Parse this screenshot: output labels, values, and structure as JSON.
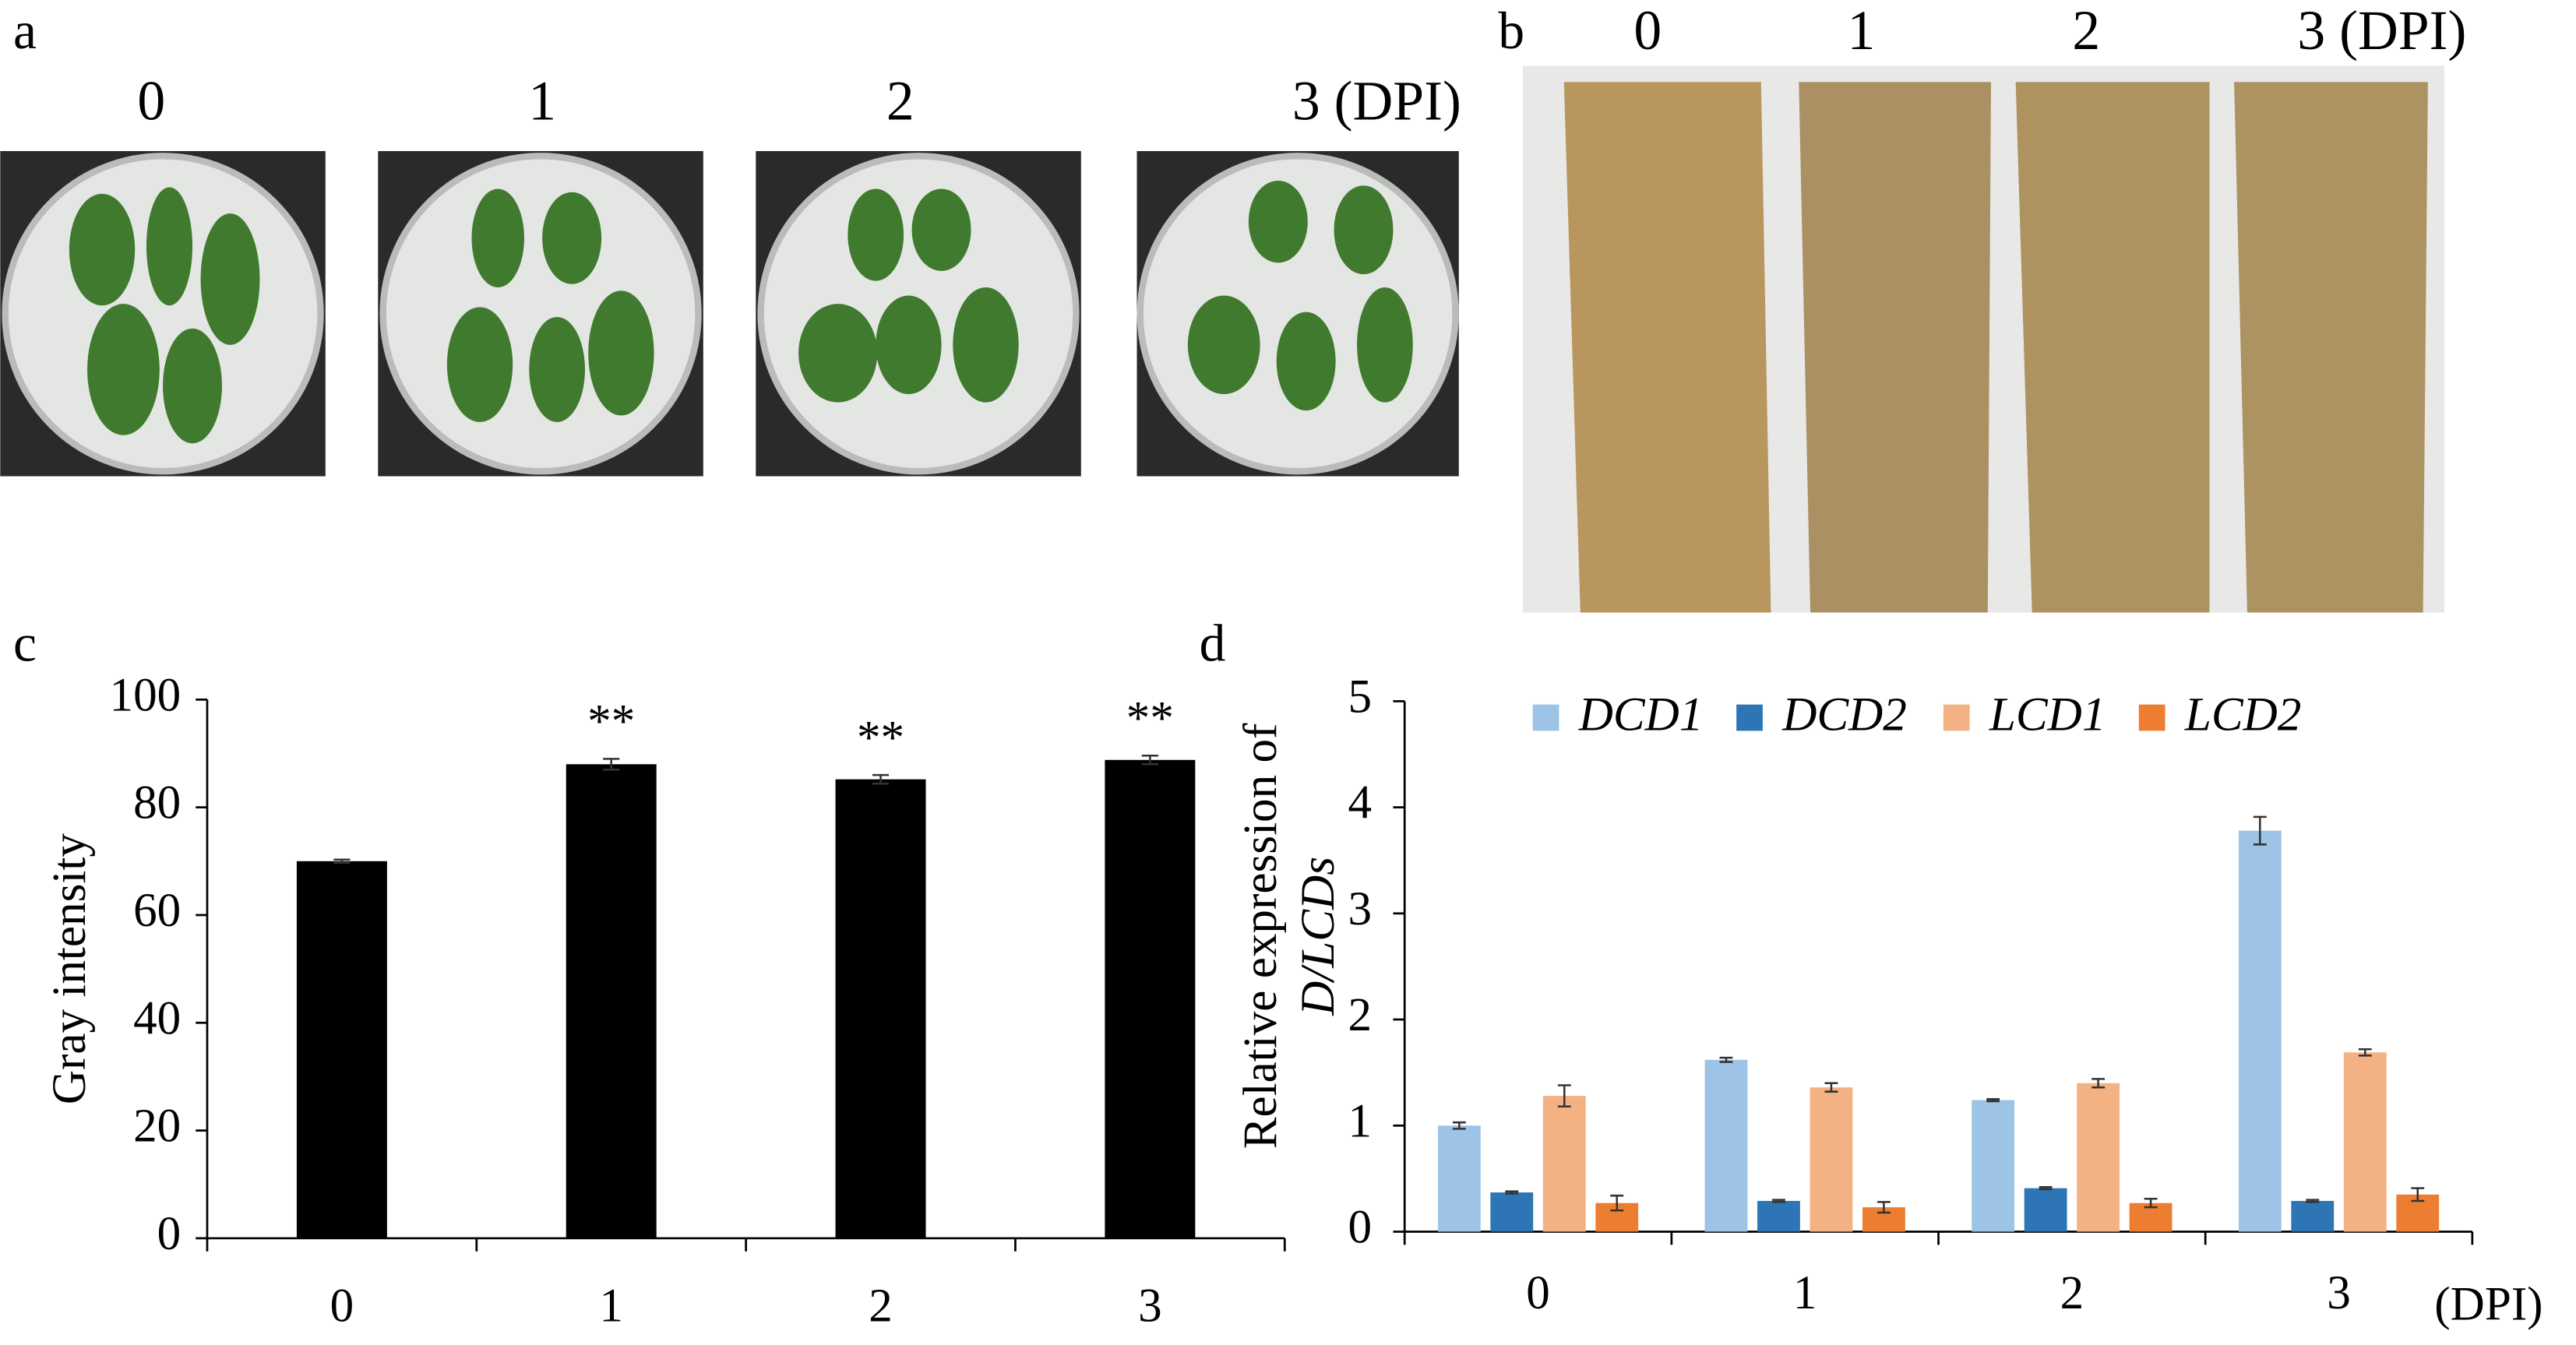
{
  "photo_panels": [
    {
      "label": "a",
      "columns": [
        "0",
        "1",
        "2",
        "3 (DPI)"
      ]
    },
    {
      "label": "b",
      "columns": [
        "0",
        "1",
        "2",
        "3 (DPI)"
      ]
    }
  ],
  "chart_data": [
    {
      "type": "bar",
      "panel_label": "c",
      "ylabel": "Gray intensity",
      "categories": [
        "0",
        "1",
        "2",
        "3"
      ],
      "values": [
        70,
        88,
        85.2,
        88.8
      ],
      "errors": [
        0.3,
        1,
        0.8,
        0.8
      ],
      "annotations": [
        null,
        "**",
        "**",
        "**"
      ],
      "color": "#000000",
      "ylim": [
        0,
        100
      ],
      "yticks": [
        0,
        20,
        40,
        60,
        80,
        100
      ]
    },
    {
      "type": "grouped_bar",
      "panel_label": "d",
      "ylabel": [
        "Relative expression of",
        "D/LCDs"
      ],
      "xlabel": "(DPI)",
      "categories": [
        "0",
        "1",
        "2",
        "3"
      ],
      "series": [
        {
          "name": "DCD1",
          "color": "#9dc3e6",
          "values": [
            1.0,
            1.62,
            1.24,
            3.78
          ],
          "errors": [
            0.03,
            0.02,
            0.01,
            0.13
          ]
        },
        {
          "name": "DCD2",
          "color": "#2e75b6",
          "values": [
            0.37,
            0.29,
            0.41,
            0.29
          ],
          "errors": [
            0.01,
            0.01,
            0.01,
            0.01
          ]
        },
        {
          "name": "LCD1",
          "color": "#f4b183",
          "values": [
            1.28,
            1.36,
            1.4,
            1.69
          ],
          "errors": [
            0.1,
            0.04,
            0.04,
            0.03
          ]
        },
        {
          "name": "LCD2",
          "color": "#ed7d31",
          "values": [
            0.27,
            0.23,
            0.27,
            0.35
          ],
          "errors": [
            0.07,
            0.05,
            0.04,
            0.06
          ]
        }
      ],
      "ylim": [
        0,
        5
      ],
      "yticks": [
        0,
        1,
        2,
        3,
        4,
        5
      ]
    }
  ]
}
